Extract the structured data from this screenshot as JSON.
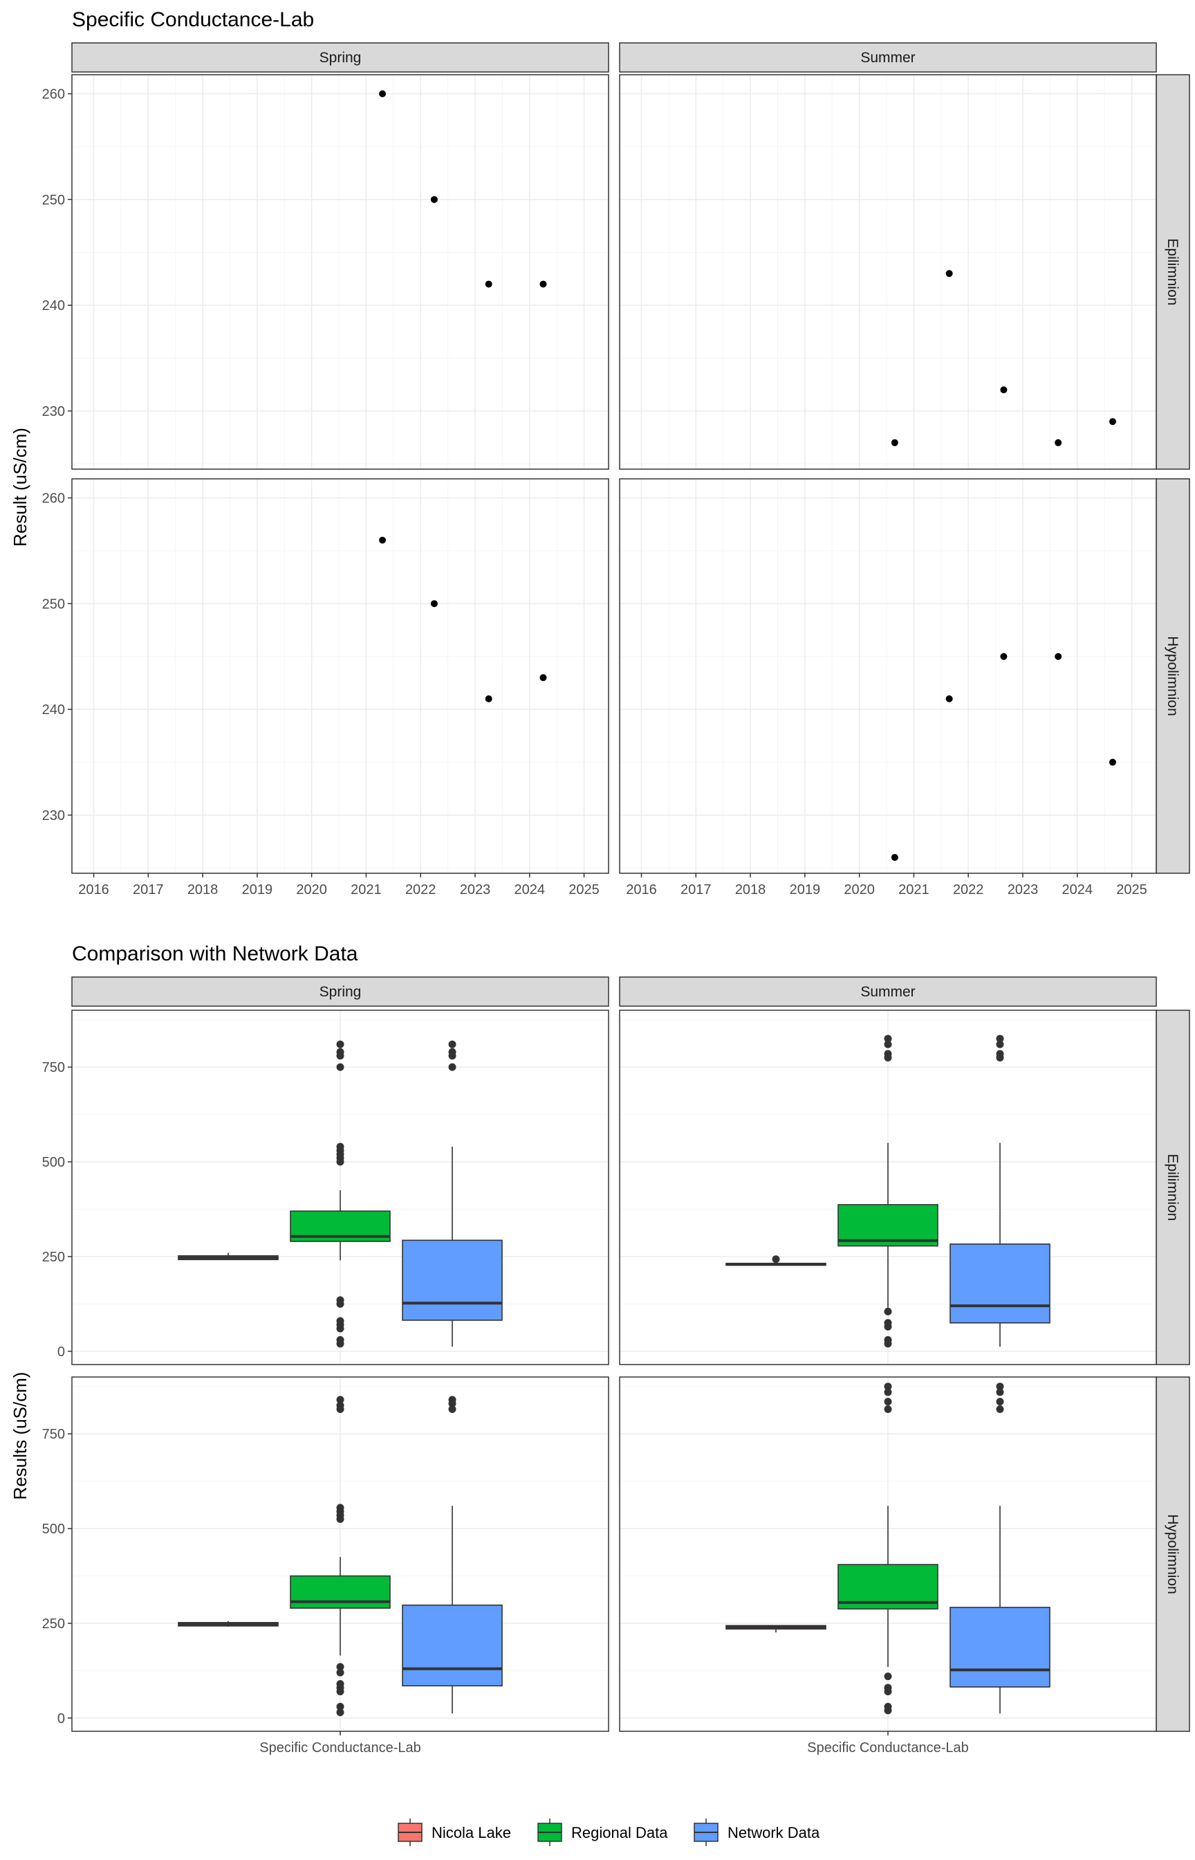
{
  "chart_data": [
    {
      "type": "scatter",
      "title": "Specific Conductance-Lab",
      "xlabel": "",
      "ylabel": "Result (uS/cm)",
      "xlim": [
        2015.6,
        2025.45
      ],
      "ylim": [
        224.5,
        261.8
      ],
      "x_ticks": [
        2016,
        2017,
        2018,
        2019,
        2020,
        2021,
        2022,
        2023,
        2024,
        2025
      ],
      "y_ticks": [
        230,
        240,
        250,
        260
      ],
      "grid": true,
      "col_facets": [
        "Spring",
        "Summer"
      ],
      "row_facets": [
        "Epilimnion",
        "Hypolimnion"
      ],
      "panels": [
        {
          "col": "Spring",
          "row": "Epilimnion",
          "points": [
            {
              "x": 2021.3,
              "y": 260
            },
            {
              "x": 2022.25,
              "y": 250
            },
            {
              "x": 2023.25,
              "y": 242
            },
            {
              "x": 2024.25,
              "y": 242
            }
          ]
        },
        {
          "col": "Summer",
          "row": "Epilimnion",
          "points": [
            {
              "x": 2020.65,
              "y": 227
            },
            {
              "x": 2021.65,
              "y": 243
            },
            {
              "x": 2022.65,
              "y": 232
            },
            {
              "x": 2023.65,
              "y": 227
            },
            {
              "x": 2024.65,
              "y": 229
            }
          ]
        },
        {
          "col": "Spring",
          "row": "Hypolimnion",
          "points": [
            {
              "x": 2021.3,
              "y": 256
            },
            {
              "x": 2022.25,
              "y": 250
            },
            {
              "x": 2023.25,
              "y": 241
            },
            {
              "x": 2024.25,
              "y": 243
            }
          ]
        },
        {
          "col": "Summer",
          "row": "Hypolimnion",
          "points": [
            {
              "x": 2020.65,
              "y": 226
            },
            {
              "x": 2021.65,
              "y": 241
            },
            {
              "x": 2022.65,
              "y": 245
            },
            {
              "x": 2023.65,
              "y": 245
            },
            {
              "x": 2024.65,
              "y": 235
            }
          ]
        }
      ]
    },
    {
      "type": "box",
      "title": "Comparison with Network Data",
      "xlabel": "",
      "ylabel": "Results (uS/cm)",
      "ylim": [
        -35,
        900
      ],
      "y_ticks": [
        0,
        250,
        500,
        750
      ],
      "grid": true,
      "category": "Specific Conductance-Lab",
      "col_facets": [
        "Spring",
        "Summer"
      ],
      "row_facets": [
        "Epilimnion",
        "Hypolimnion"
      ],
      "legend": {
        "position": "bottom",
        "items": [
          {
            "name": "Nicola Lake",
            "color": "#F8766D"
          },
          {
            "name": "Regional Data",
            "color": "#00BA38"
          },
          {
            "name": "Network Data",
            "color": "#619CFF"
          }
        ]
      },
      "panels": [
        {
          "col": "Spring",
          "row": "Epilimnion",
          "boxes": [
            {
              "group": "Nicola Lake",
              "q1": 242,
              "median": 247,
              "q3": 252,
              "whisker_low": 242,
              "whisker_high": 260,
              "outliers": []
            },
            {
              "group": "Regional Data",
              "q1": 290,
              "median": 303,
              "q3": 370,
              "whisker_low": 240,
              "whisker_high": 425,
              "outliers": [
                810,
                790,
                780,
                750,
                540,
                530,
                520,
                510,
                500,
                135,
                125,
                80,
                70,
                60,
                30,
                20
              ]
            },
            {
              "group": "Network Data",
              "q1": 82,
              "median": 127,
              "q3": 293,
              "whisker_low": 12,
              "whisker_high": 540,
              "outliers": [
                810,
                790,
                780,
                750
              ]
            }
          ]
        },
        {
          "col": "Summer",
          "row": "Epilimnion",
          "boxes": [
            {
              "group": "Nicola Lake",
              "q1": 227,
              "median": 230,
              "q3": 232,
              "whisker_low": 227,
              "whisker_high": 232,
              "outliers": [
                243
              ]
            },
            {
              "group": "Regional Data",
              "q1": 278,
              "median": 292,
              "q3": 387,
              "whisker_low": 115,
              "whisker_high": 550,
              "outliers": [
                825,
                810,
                785,
                775,
                105,
                75,
                65,
                30,
                20
              ]
            },
            {
              "group": "Network Data",
              "q1": 75,
              "median": 120,
              "q3": 283,
              "whisker_low": 12,
              "whisker_high": 550,
              "outliers": [
                825,
                810,
                785,
                775
              ]
            }
          ]
        },
        {
          "col": "Spring",
          "row": "Hypolimnion",
          "boxes": [
            {
              "group": "Nicola Lake",
              "q1": 243,
              "median": 248,
              "q3": 252,
              "whisker_low": 241,
              "whisker_high": 256,
              "outliers": []
            },
            {
              "group": "Regional Data",
              "q1": 290,
              "median": 307,
              "q3": 375,
              "whisker_low": 165,
              "whisker_high": 425,
              "outliers": [
                840,
                825,
                815,
                555,
                545,
                535,
                525,
                135,
                120,
                90,
                80,
                70,
                30,
                15
              ]
            },
            {
              "group": "Network Data",
              "q1": 85,
              "median": 130,
              "q3": 298,
              "whisker_low": 12,
              "whisker_high": 560,
              "outliers": [
                840,
                830,
                815
              ]
            }
          ]
        },
        {
          "col": "Summer",
          "row": "Hypolimnion",
          "boxes": [
            {
              "group": "Nicola Lake",
              "q1": 235,
              "median": 240,
              "q3": 244,
              "whisker_low": 226,
              "whisker_high": 245,
              "outliers": []
            },
            {
              "group": "Regional Data",
              "q1": 288,
              "median": 305,
              "q3": 405,
              "whisker_low": 135,
              "whisker_high": 560,
              "outliers": [
                875,
                860,
                835,
                815,
                110,
                80,
                70,
                30,
                20
              ]
            },
            {
              "group": "Network Data",
              "q1": 82,
              "median": 127,
              "q3": 292,
              "whisker_low": 12,
              "whisker_high": 560,
              "outliers": [
                875,
                860,
                835,
                815
              ]
            }
          ]
        }
      ]
    }
  ]
}
